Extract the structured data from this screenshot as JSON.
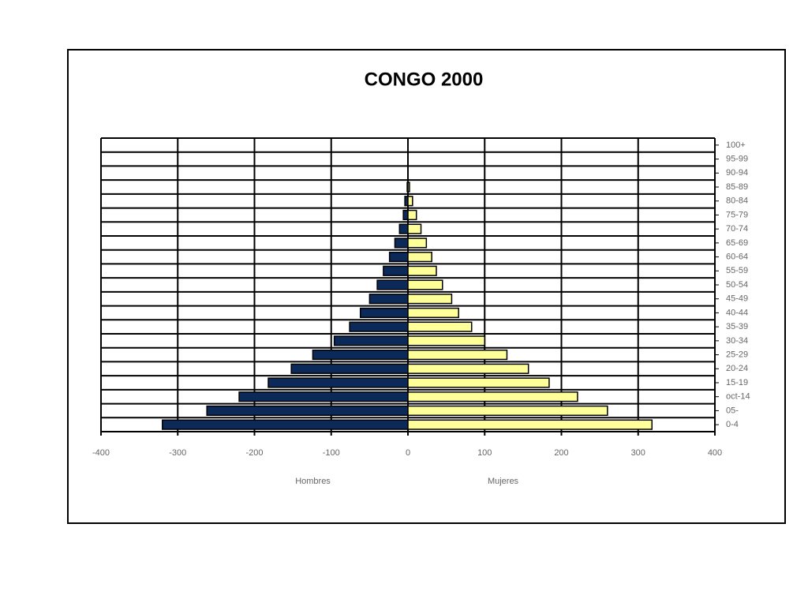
{
  "chart_data": {
    "type": "bar",
    "orientation": "horizontal",
    "title": "CONGO   2000",
    "categories": [
      "0-4",
      "05-",
      "oct-14",
      "15-19",
      "20-24",
      "25-29",
      "30-34",
      "35-39",
      "40-44",
      "45-49",
      "50-54",
      "55-59",
      "60-64",
      "65-69",
      "70-74",
      "75-79",
      "80-84",
      "85-89",
      "90-94",
      "95-99",
      "100+"
    ],
    "series": [
      {
        "name": "Hombres",
        "color": "#0b2a5a",
        "values": [
          -320,
          -262,
          -220,
          -182,
          -152,
          -124,
          -96,
          -76,
          -62,
          -50,
          -40,
          -32,
          -24,
          -17,
          -11,
          -6,
          -4,
          -1,
          0,
          0,
          0
        ]
      },
      {
        "name": "Mujeres",
        "color": "#ffff99",
        "values": [
          318,
          260,
          221,
          184,
          157,
          129,
          100,
          83,
          66,
          57,
          45,
          37,
          31,
          24,
          17,
          11,
          6,
          2,
          0,
          0,
          0
        ]
      }
    ],
    "xlim": [
      -400,
      400
    ],
    "xticks": [
      -400,
      -300,
      -200,
      -100,
      0,
      100,
      200,
      300,
      400
    ],
    "grid": true
  }
}
